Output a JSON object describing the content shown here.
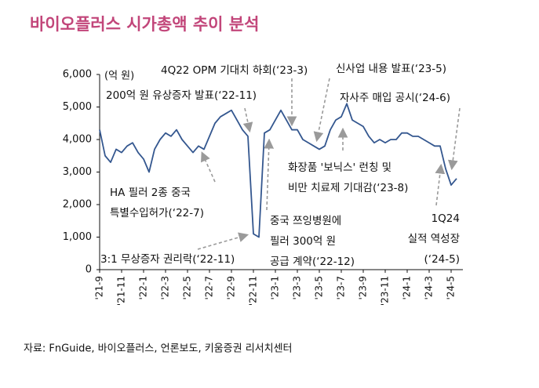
{
  "chart_data": {
    "type": "line",
    "title": "바이오플러스 시가총액 추이 분석",
    "unit": "(억 원)",
    "source": "자료: FnGuide, 바이오플러스, 언론보도, 키움증권 리서치센터",
    "categories": [
      "'21-9",
      null,
      null,
      null,
      "'21-11",
      null,
      null,
      null,
      "'22-1",
      null,
      null,
      null,
      "'22-3",
      null,
      null,
      null,
      "'22-5",
      null,
      null,
      null,
      "'22-7",
      null,
      null,
      null,
      "'22-9",
      null,
      null,
      null,
      "'22-11",
      null,
      null,
      null,
      "'23-1",
      null,
      null,
      null,
      "'23-3",
      null,
      null,
      null,
      "'23-5",
      null,
      null,
      null,
      "'23-7",
      null,
      null,
      null,
      "'23-9",
      null,
      null,
      null,
      "'23-11",
      null,
      null,
      null,
      "'24-1",
      null,
      null,
      null,
      "'24-3",
      null,
      null,
      null,
      "'24-5",
      null
    ],
    "series": [
      {
        "name": "시가총액",
        "color": "#34578f",
        "values": [
          4300,
          3500,
          3300,
          3700,
          3600,
          3800,
          3900,
          3600,
          3400,
          3000,
          3700,
          4000,
          4200,
          4100,
          4300,
          4000,
          3800,
          3600,
          3800,
          3700,
          4100,
          4500,
          4700,
          4800,
          4900,
          4600,
          4300,
          4100,
          1100,
          1000,
          4200,
          4300,
          4600,
          4900,
          4600,
          4300,
          4300,
          4000,
          3900,
          3800,
          3700,
          3800,
          4300,
          4600,
          4700,
          5100,
          4600,
          4500,
          4400,
          4100,
          3900,
          4000,
          3900,
          4000,
          4000,
          4200,
          4200,
          4100,
          4100,
          4000,
          3900,
          3800,
          3800,
          3100,
          2600,
          2800
        ]
      }
    ],
    "ylim": [
      0,
      6000
    ],
    "yticks": [
      {
        "value": 0,
        "label": "0"
      },
      {
        "value": 1000,
        "label": "1,000"
      },
      {
        "value": 2000,
        "label": "2,000"
      },
      {
        "value": 3000,
        "label": "3,000"
      },
      {
        "value": 4000,
        "label": "4,000"
      },
      {
        "value": 5000,
        "label": "5,000"
      },
      {
        "value": 6000,
        "label": "6,000"
      }
    ],
    "grid": false,
    "annotations": [
      [
        "4Q22 OPM 기대치 하회(‘23-3)"
      ],
      [
        "200억 원 유상증자 발표(‘22-11)"
      ],
      [
        "신사업 내용 발표(‘23-5)"
      ],
      [
        "자사주 매입 공시(‘24-6)"
      ],
      [
        "화장품 '보닉스' 런칭 및",
        "비만 치료제 기대감(‘23-8)"
      ],
      [
        "HA 필러 2종 중국",
        "특별수입허가(‘22-7)"
      ],
      [
        "중국 쯔잉병원에",
        "필러 300억 원",
        "공급 계약(‘22-12)"
      ],
      [
        "1Q24",
        "실적 역성장",
        "(‘24-5)"
      ],
      [
        "3:1 무상증자 권리락(‘22-11)"
      ]
    ]
  }
}
